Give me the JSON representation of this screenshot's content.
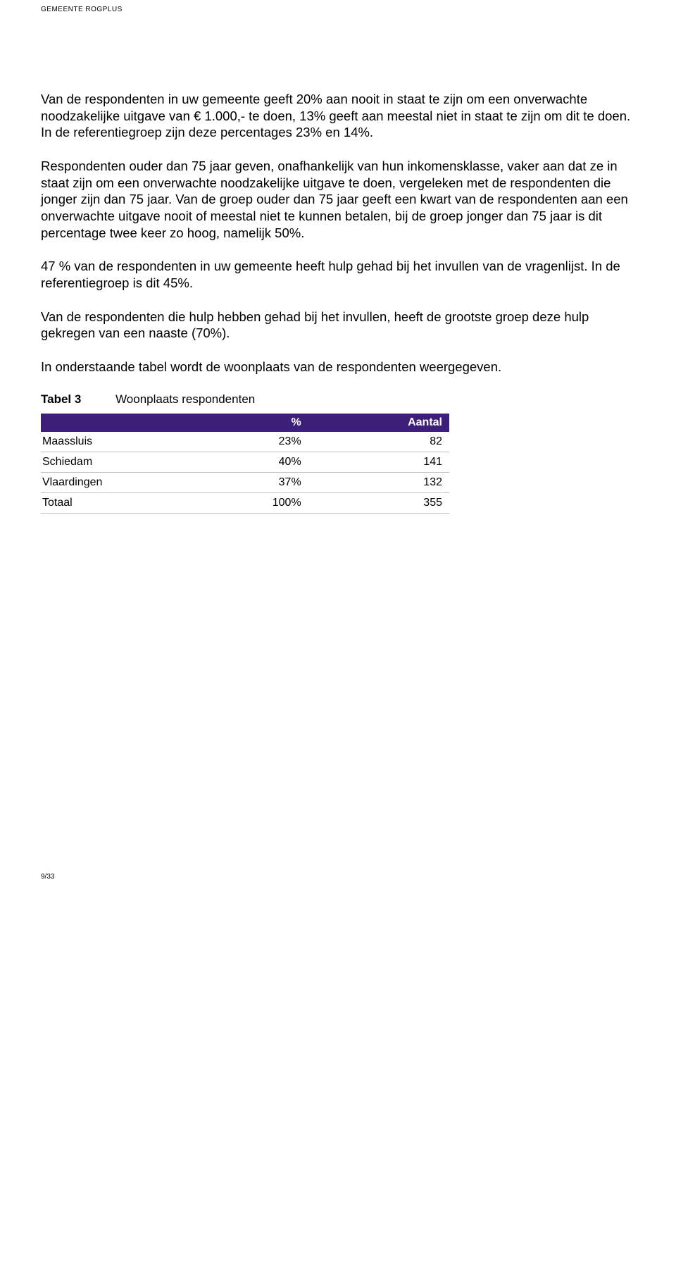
{
  "header": {
    "org": "GEMEENTE ROGPLUS"
  },
  "paragraphs": {
    "p1": "Van de respondenten in uw gemeente geeft 20% aan nooit in staat te zijn om een onverwachte noodzakelijke uitgave van € 1.000,- te doen, 13% geeft aan meestal niet in staat te zijn om dit te doen. In de referentiegroep zijn deze percentages 23% en 14%.",
    "p2": "Respondenten ouder dan 75 jaar geven, onafhankelijk van hun inkomensklasse, vaker aan dat ze in staat zijn om een onverwachte noodzakelijke uitgave te doen, vergeleken met de respondenten die jonger zijn dan 75 jaar. Van de groep ouder dan 75 jaar geeft een kwart van de respondenten aan een onverwachte uitgave nooit of meestal niet te kunnen betalen, bij de groep jonger dan 75 jaar is dit percentage twee keer zo hoog, namelijk 50%.",
    "p3": "47 % van de respondenten in uw gemeente heeft hulp gehad bij het invullen van de vragenlijst. In de referentiegroep is dit 45%.",
    "p4": "Van de respondenten die hulp hebben gehad bij het invullen, heeft de grootste groep deze hulp gekregen van een naaste (70%).",
    "p5": "In onderstaande tabel wordt de woonplaats van de respondenten weergegeven."
  },
  "table": {
    "caption_label": "Tabel 3",
    "caption_text": "Woonplaats respondenten",
    "columns": [
      "",
      "%",
      "Aantal"
    ],
    "header_bg": "#3d1e78",
    "header_fg": "#ffffff",
    "border_color": "#bfbfbf",
    "rows": [
      {
        "name": "Maassluis",
        "pct": "23%",
        "count": "82"
      },
      {
        "name": "Schiedam",
        "pct": "40%",
        "count": "141"
      },
      {
        "name": "Vlaardingen",
        "pct": "37%",
        "count": "132"
      },
      {
        "name": "Totaal",
        "pct": "100%",
        "count": "355"
      }
    ]
  },
  "footer": {
    "page": "9/33"
  }
}
